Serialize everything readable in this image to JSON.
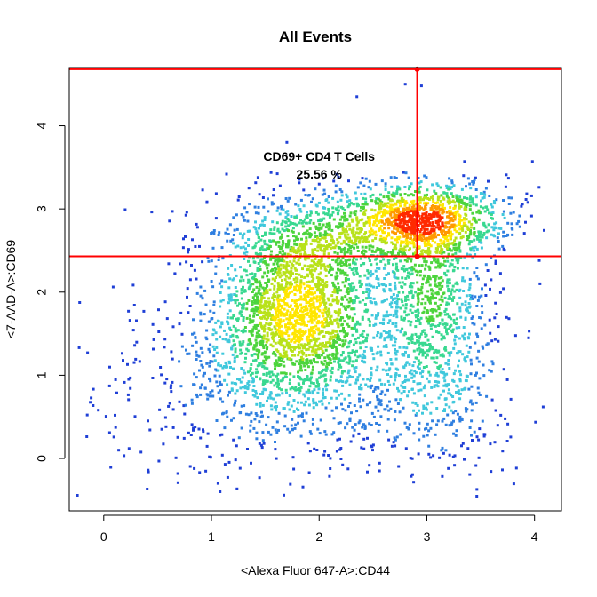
{
  "chart_data": {
    "type": "scatter",
    "title": "All Events",
    "xlabel": "<Alexa Fluor 647-A>:CD44",
    "ylabel": "<7-AAD-A>:CD69",
    "xlim": [
      -0.32,
      4.25
    ],
    "ylim": [
      -0.63,
      4.7
    ],
    "xticks": [
      0,
      1,
      2,
      3,
      4
    ],
    "yticks": [
      0,
      1,
      2,
      3,
      4
    ],
    "grid": false,
    "density_colors": [
      "#1f3fd6",
      "#2f7fe0",
      "#40c8dc",
      "#38d890",
      "#4cd43c",
      "#b8e21a",
      "#ffe600",
      "#ff9a00",
      "#ff2a00"
    ],
    "clusters": [
      {
        "center": [
          1.82,
          1.78
        ],
        "spread": [
          0.42,
          0.55
        ],
        "weight": 0.36
      },
      {
        "center": [
          2.95,
          2.88
        ],
        "spread": [
          0.42,
          0.24
        ],
        "weight": 0.2
      },
      {
        "center": [
          2.05,
          2.65
        ],
        "spread": [
          0.55,
          0.28
        ],
        "weight": 0.1
      },
      {
        "center": [
          3.05,
          2.05
        ],
        "spread": [
          0.25,
          0.55
        ],
        "weight": 0.12
      },
      {
        "center": [
          1.6,
          0.95
        ],
        "spread": [
          0.75,
          0.6
        ],
        "weight": 0.14
      },
      {
        "center": [
          3.1,
          0.9
        ],
        "spread": [
          0.35,
          0.55
        ],
        "weight": 0.08
      }
    ],
    "outliers": [
      {
        "x": 2.35,
        "y": 4.35
      },
      {
        "x": 1.7,
        "y": 3.8
      },
      {
        "x": 2.8,
        "y": 4.5
      },
      {
        "x": 2.95,
        "y": 4.48
      },
      {
        "x": 3.98,
        "y": 3.57
      },
      {
        "x": 3.35,
        "y": 3.57
      },
      {
        "x": -0.15,
        "y": 1.27
      },
      {
        "x": 4.05,
        "y": 2.1
      },
      {
        "x": 4.08,
        "y": 0.62
      },
      {
        "x": 3.95,
        "y": 1.53
      },
      {
        "x": 1.08,
        "y": -0.4
      },
      {
        "x": -0.05,
        "y": 0.58
      }
    ],
    "gate": {
      "name": "CD69+ CD4 T Cells",
      "percent": "25.56 %",
      "color": "#ff0000",
      "x_threshold": 2.91,
      "y_threshold": 2.43,
      "top": 4.68
    }
  }
}
